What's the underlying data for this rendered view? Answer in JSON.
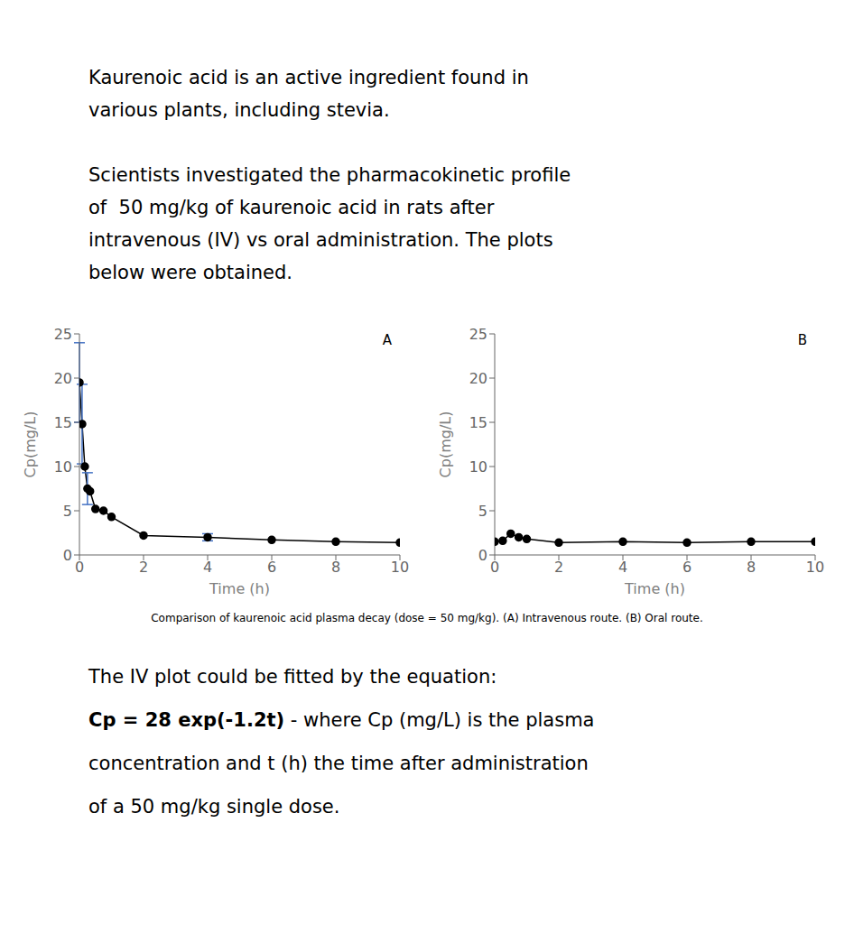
{
  "title": [
    [
      "Kaurenoic acid is an active ingredient found in",
      "various plants, including stevia."
    ],
    [
      "Scientists investigated the pharmacokinetic profile",
      "of  50 mg/kg of kaurenoic acid in rats after",
      "intravenous (IV) vs oral administration. The plots",
      "below were obtained."
    ]
  ],
  "caption": "Comparison of kaurenoic acid plasma decay (dose = 50 mg/kg). (A) Intravenous route. (B) Oral route.",
  "footnote": [
    [
      {
        "text": "The IV plot could be fitted by the equation:",
        "bold": false
      }
    ],
    [
      {
        "text": "Cp = 28 exp(-1.2t)",
        "bold": true
      },
      {
        "text": " - where Cp (mg/L) is the plasma",
        "bold": false
      }
    ],
    [
      {
        "text": "concentration and t (h) the time after administration",
        "bold": false
      }
    ],
    [
      {
        "text": "of a 50 mg/kg single dose.",
        "bold": false
      }
    ]
  ],
  "chart_data": [
    {
      "type": "line",
      "annotations": [
        "A"
      ],
      "xlabel": "Time (h)",
      "ylabel": "Cp(mg/L)",
      "x": [
        0,
        0.083,
        0.167,
        0.25,
        0.33,
        0.5,
        0.75,
        1.0,
        2.0,
        4.0,
        6.0,
        8.0,
        10.0
      ],
      "values": [
        19.5,
        14.8,
        10.0,
        7.5,
        7.2,
        5.2,
        5.0,
        4.3,
        2.2,
        2.0,
        1.7,
        1.5,
        1.4
      ],
      "error_bars": {
        "x": [
          0,
          0.083,
          0.25,
          4.0
        ],
        "y": [
          19.5,
          14.8,
          7.5,
          2.0
        ],
        "lower": [
          4.5,
          4.5,
          1.8,
          0.4
        ],
        "upper": [
          4.5,
          4.5,
          1.8,
          0.4
        ],
        "color": "#4472C4"
      },
      "xlim": [
        0,
        10
      ],
      "ylim": [
        0,
        25
      ],
      "xticks": [
        0,
        2,
        4,
        6,
        8,
        10
      ],
      "yticks": [
        0,
        5,
        10,
        15,
        20,
        25
      ],
      "color": "#000000",
      "marker": "circle",
      "grid": false
    },
    {
      "type": "line",
      "annotations": [
        "B"
      ],
      "xlabel": "Time (h)",
      "ylabel": "Cp(mg/L)",
      "x": [
        0,
        0.25,
        0.5,
        0.75,
        1.0,
        2.0,
        4.0,
        6.0,
        8.0,
        10.0
      ],
      "values": [
        1.5,
        1.6,
        2.4,
        2.0,
        1.8,
        1.4,
        1.5,
        1.4,
        1.5,
        1.5
      ],
      "xlim": [
        0,
        10
      ],
      "ylim": [
        0,
        25
      ],
      "xticks": [
        0,
        2,
        4,
        6,
        8,
        10
      ],
      "yticks": [
        0,
        5,
        10,
        15,
        20,
        25
      ],
      "color": "#000000",
      "marker": "circle",
      "grid": false
    }
  ]
}
